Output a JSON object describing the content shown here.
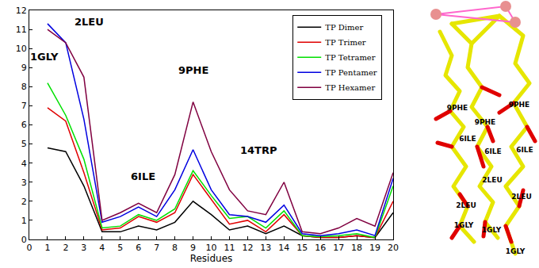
{
  "chart_data": {
    "type": "line",
    "x_label": "Residues",
    "x": [
      1,
      2,
      3,
      4,
      5,
      6,
      7,
      8,
      9,
      10,
      11,
      12,
      13,
      14,
      15,
      16,
      17,
      18,
      19,
      20
    ],
    "xlim": [
      0,
      20
    ],
    "xticks": [
      0,
      1,
      2,
      3,
      4,
      5,
      6,
      7,
      8,
      9,
      10,
      11,
      12,
      13,
      14,
      15,
      16,
      17,
      18,
      19,
      20
    ],
    "ylim": [
      0,
      12
    ],
    "yticks": [
      0,
      1,
      2,
      3,
      4,
      5,
      6,
      7,
      8,
      9,
      10,
      11,
      12
    ],
    "grid": false,
    "legend": "top-right",
    "series": [
      {
        "name": "TP Dimer",
        "color": "#000000",
        "values": [
          4.8,
          4.6,
          2.8,
          0.4,
          0.4,
          0.7,
          0.5,
          0.9,
          2.0,
          1.3,
          0.5,
          0.7,
          0.3,
          0.7,
          0.2,
          0.1,
          0.1,
          0.2,
          0.1,
          1.4
        ]
      },
      {
        "name": "TP Trimer",
        "color": "#e00000",
        "values": [
          6.9,
          6.2,
          3.5,
          0.5,
          0.6,
          1.2,
          0.9,
          1.4,
          3.4,
          2.1,
          0.8,
          1.0,
          0.4,
          1.3,
          0.2,
          0.1,
          0.1,
          0.2,
          0.1,
          2.0
        ]
      },
      {
        "name": "TP Tetramer",
        "color": "#00e000",
        "values": [
          8.2,
          6.5,
          4.2,
          0.6,
          0.7,
          1.3,
          1.0,
          1.6,
          3.6,
          2.3,
          1.1,
          1.2,
          0.6,
          1.5,
          0.2,
          0.15,
          0.2,
          0.3,
          0.1,
          2.8
        ]
      },
      {
        "name": "TP Pentamer",
        "color": "#0000e0",
        "values": [
          11.3,
          10.3,
          6.3,
          0.9,
          1.2,
          1.7,
          1.2,
          2.6,
          4.7,
          2.6,
          1.3,
          1.2,
          0.9,
          1.8,
          0.3,
          0.2,
          0.3,
          0.5,
          0.2,
          3.2
        ]
      },
      {
        "name": "TP Hexamer",
        "color": "#800040",
        "values": [
          11.0,
          10.3,
          8.5,
          1.0,
          1.4,
          1.9,
          1.4,
          3.4,
          7.2,
          4.6,
          2.6,
          1.5,
          1.3,
          3.0,
          0.4,
          0.3,
          0.6,
          1.1,
          0.7,
          3.5
        ]
      }
    ],
    "annotations": [
      {
        "text": "1GLY",
        "x": 1
      },
      {
        "text": "2LEU",
        "x": 2
      },
      {
        "text": "6ILE",
        "x": 6
      },
      {
        "text": "9PHE",
        "x": 9
      },
      {
        "text": "14TRP",
        "x": 14
      }
    ]
  },
  "structure": {
    "labels": [
      "9PHE",
      "9PHE",
      "9PHE",
      "6ILE",
      "6ILE",
      "6ILE",
      "2LEU",
      "2LEU",
      "2LEU",
      "1GLY",
      "1GLY",
      "1GLY"
    ]
  }
}
